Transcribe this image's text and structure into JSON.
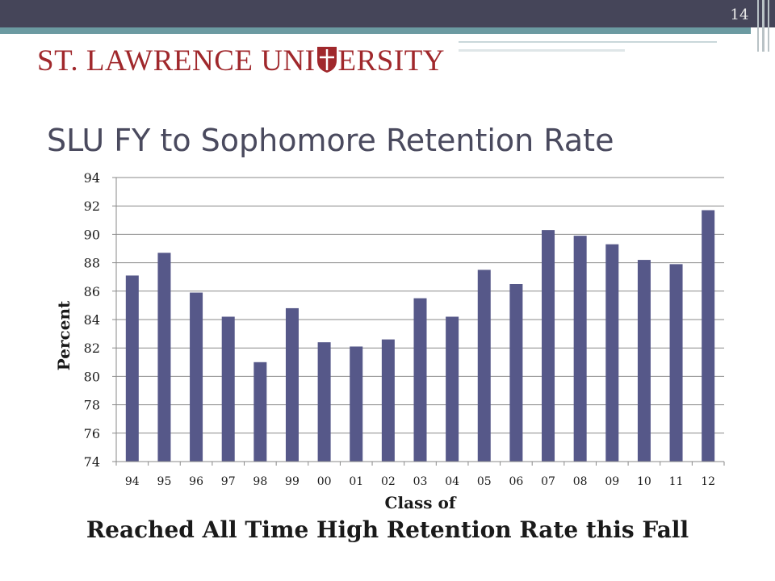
{
  "slide": {
    "page_number": "14",
    "logo_text_left": "ST. LAWRENCE UNI",
    "logo_text_right": "ERSITY",
    "title": "SLU FY to Sophomore Retention Rate",
    "footer": "Reached All Time High Retention Rate this Fall"
  },
  "colors": {
    "bar": "#565889",
    "brand": "#a0282c",
    "header": "#454559",
    "accent": "#6b9aa1"
  },
  "chart_data": {
    "type": "bar",
    "title": "",
    "xlabel": "Class of",
    "ylabel": "Percent",
    "ylim": [
      74,
      94
    ],
    "yticks": [
      "74",
      "76",
      "78",
      "80",
      "82",
      "84",
      "86",
      "88",
      "90",
      "92",
      "94"
    ],
    "grid": true,
    "categories": [
      "94",
      "95",
      "96",
      "97",
      "98",
      "99",
      "00",
      "01",
      "02",
      "03",
      "04",
      "05",
      "06",
      "07",
      "08",
      "09",
      "10",
      "11",
      "12"
    ],
    "series": [
      {
        "values": [
          87.1,
          88.7,
          85.9,
          84.2,
          81.0,
          84.8,
          82.4,
          82.1,
          82.6,
          85.5,
          84.2,
          87.5,
          86.5,
          90.3,
          89.9,
          89.3,
          88.2,
          87.9,
          91.7
        ]
      }
    ]
  }
}
